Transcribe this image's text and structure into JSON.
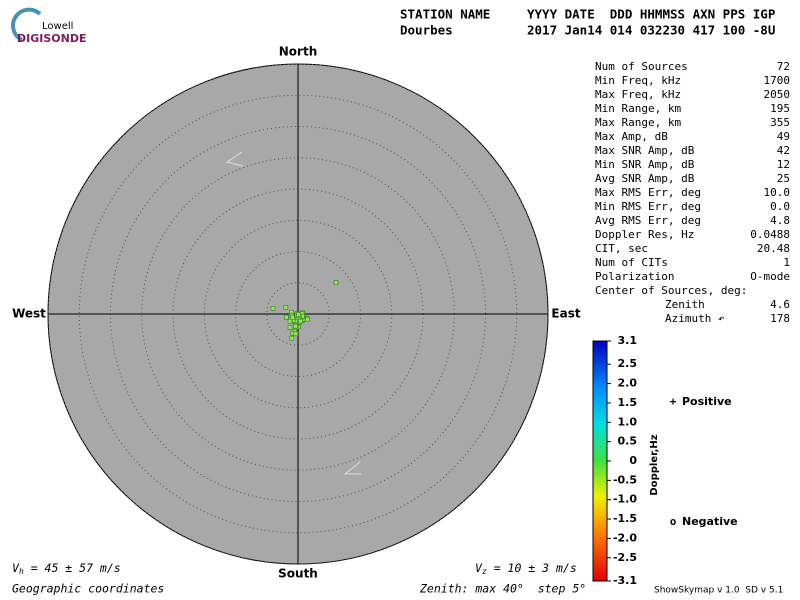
{
  "header": {
    "logo_top": "Lowell",
    "logo_bottom": "DIGISONDE",
    "station_label": "STATION NAME",
    "columns": "YYYY DATE  DDD HHMMSS AXN PPS IGP",
    "station": "Dourbes",
    "values": "2017 Jan14 014 032230 417 100 -8U"
  },
  "chart_data": {
    "type": "scatter",
    "directions": {
      "north": "North",
      "south": "South",
      "west": "West",
      "east": "East"
    },
    "xlim": [
      -40,
      40
    ],
    "ylim": [
      -40,
      40
    ],
    "rticks": [
      5,
      10,
      15,
      20,
      25,
      30,
      35,
      40
    ],
    "grid": true,
    "point_color": "#8fe860",
    "x": [
      6.08,
      -4.0,
      -1.95,
      -1.06,
      -0.16,
      0.77,
      0.64,
      -0.99,
      -1.86,
      -0.48,
      -0.26,
      -0.1,
      0.06,
      -0.35,
      0.22,
      0.38,
      0.7,
      1.02,
      1.44,
      1.5,
      -1.15,
      -0.67,
      -1.28,
      -0.58,
      -0.1,
      0.22,
      -0.42,
      -0.26,
      0.06,
      -0.19,
      -1.28,
      -0.51,
      -0.9,
      -0.35,
      -0.99,
      -0.42,
      0.54,
      0.7,
      -0.9,
      0.22,
      0,
      -0.16,
      0.06,
      0.38
    ],
    "y": [
      5.02,
      0.9,
      1.06,
      0.29,
      0.03,
      0.19,
      0.06,
      -0.19,
      -0.51,
      -0.42,
      -0.51,
      -0.67,
      -0.83,
      -0.83,
      -0.99,
      -0.83,
      -0.99,
      -0.83,
      -0.67,
      -0.83,
      -0.83,
      -0.83,
      -1.15,
      -1.15,
      -1.15,
      -1.31,
      -1.63,
      -1.79,
      -2.05,
      -2.11,
      -2.14,
      -2.75,
      -3.07,
      -3.17,
      -3.87,
      -1.95,
      -0.51,
      -0.35,
      -0.51,
      -0.35,
      -0.51,
      -0.26,
      -0.13,
      -1.15
    ],
    "colorbar": {
      "label": "Doppler,Hz",
      "lim": [
        -3.1,
        3.1
      ],
      "ticks": [
        3.1,
        2.5,
        {
          "value": 2,
          "label": "2.0"
        },
        1.5,
        {
          "value": 1,
          "label": "1.0"
        },
        0.5,
        0,
        -0.5,
        {
          "value": -1,
          "label": "-1.0"
        },
        -1.5,
        {
          "value": -2,
          "label": "-2.0"
        },
        -2.5,
        -3.1
      ]
    },
    "legend": [
      {
        "marker": "+",
        "name": "Positive",
        "color": "#0000c0"
      },
      {
        "marker": "o",
        "name": "Negative",
        "color": "#d00000"
      }
    ]
  },
  "stats": [
    [
      "Num of Sources",
      "72"
    ],
    [
      "Min Freq, kHz",
      "1700"
    ],
    [
      "Max Freq, kHz",
      "2050"
    ],
    [
      "Min Range, km",
      "195"
    ],
    [
      "Max Range, km",
      "355"
    ],
    [
      "Max Amp, dB",
      "49"
    ],
    [
      "Max SNR Amp, dB",
      "42"
    ],
    [
      "Min SNR Amp, dB",
      "12"
    ],
    [
      "Avg SNR Amp, dB",
      "25"
    ],
    [
      "Max RMS Err, deg",
      "10.0"
    ],
    [
      "Min RMS Err, deg",
      "0.0"
    ],
    [
      "Avg RMS Err, deg",
      "4.8"
    ],
    [
      "Doppler Res, Hz",
      "0.0488"
    ],
    [
      "CIT, sec",
      "20.48"
    ],
    [
      "Num of CITs",
      "1"
    ],
    [
      "Polarization",
      "O-mode"
    ],
    [
      "Center of Sources, deg:",
      ""
    ]
  ],
  "center": [
    [
      "Zenith",
      "4.6"
    ],
    [
      "Azimuth ↶",
      "178"
    ]
  ],
  "footer": {
    "vh": {
      "symbol": "V",
      "sub": "h",
      "text": " = 45 ± 57 m/s"
    },
    "vz": {
      "symbol": "V",
      "sub": "z",
      "text": " = 10 ± 3 m/s"
    },
    "coords": "Geographic coordinates",
    "zenith": "Zenith: max 40°  step 5°",
    "version": "ShowSkymap v 1.0  SD v 5.1"
  }
}
